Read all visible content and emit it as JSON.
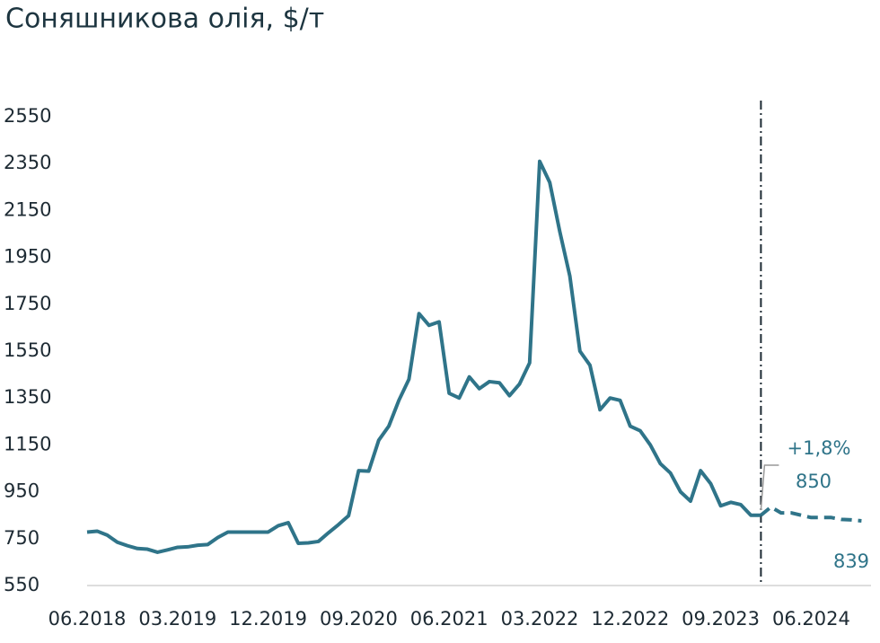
{
  "chart_data": {
    "type": "line",
    "title": "Соняшникова олія, $/т",
    "categories": [
      "06.2018",
      null,
      null,
      null,
      null,
      null,
      null,
      null,
      null,
      "03.2019",
      null,
      null,
      null,
      null,
      null,
      null,
      null,
      null,
      "12.2019",
      null,
      null,
      null,
      null,
      null,
      null,
      null,
      null,
      "09.2020",
      null,
      null,
      null,
      null,
      null,
      null,
      null,
      null,
      "06.2021",
      null,
      null,
      null,
      null,
      null,
      null,
      null,
      null,
      "03.2022",
      null,
      null,
      null,
      null,
      null,
      null,
      null,
      null,
      "12.2022",
      null,
      null,
      null,
      null,
      null,
      null,
      null,
      null,
      "09.2023",
      null,
      null,
      null,
      null,
      null,
      null,
      null,
      null,
      "06.2024",
      null,
      null,
      null,
      null,
      null
    ],
    "series": [
      {
        "color": "#2f7489",
        "dash": false,
        "values": [
          778,
          782,
          765,
          735,
          720,
          708,
          705,
          692,
          702,
          713,
          715,
          722,
          725,
          755,
          778,
          778,
          778,
          778,
          778,
          805,
          818,
          730,
          732,
          738,
          775,
          810,
          848,
          1040,
          1038,
          1170,
          1230,
          1340,
          1430,
          1710,
          1660,
          1675,
          1370,
          1350,
          1440,
          1390,
          1420,
          1415,
          1360,
          1410,
          1500,
          2360,
          2270,
          2060,
          1870,
          1550,
          1490,
          1300,
          1350,
          1340,
          1230,
          1210,
          1150,
          1070,
          1030,
          950,
          910,
          1040,
          985,
          890,
          905,
          895,
          850,
          850,
          null,
          null,
          null,
          null,
          null,
          null,
          null,
          null,
          null,
          null
        ]
      },
      {
        "color": "#2f7489",
        "dash": true,
        "values": [
          null,
          null,
          null,
          null,
          null,
          null,
          null,
          null,
          null,
          null,
          null,
          null,
          null,
          null,
          null,
          null,
          null,
          null,
          null,
          null,
          null,
          null,
          null,
          null,
          null,
          null,
          null,
          null,
          null,
          null,
          null,
          null,
          null,
          null,
          null,
          null,
          null,
          null,
          null,
          null,
          null,
          null,
          null,
          null,
          null,
          null,
          null,
          null,
          null,
          null,
          null,
          null,
          null,
          null,
          null,
          null,
          null,
          null,
          null,
          null,
          null,
          null,
          null,
          null,
          null,
          null,
          null,
          850,
          885,
          860,
          860,
          850,
          840,
          840,
          840,
          832,
          830,
          826
        ]
      }
    ],
    "ylim": [
      550,
      2550
    ],
    "yticks": [
      550,
      750,
      950,
      1150,
      1350,
      1550,
      1750,
      1950,
      2150,
      2350,
      2550
    ],
    "grid": false,
    "annotations": [
      "+1,8%",
      "850",
      "839"
    ]
  }
}
